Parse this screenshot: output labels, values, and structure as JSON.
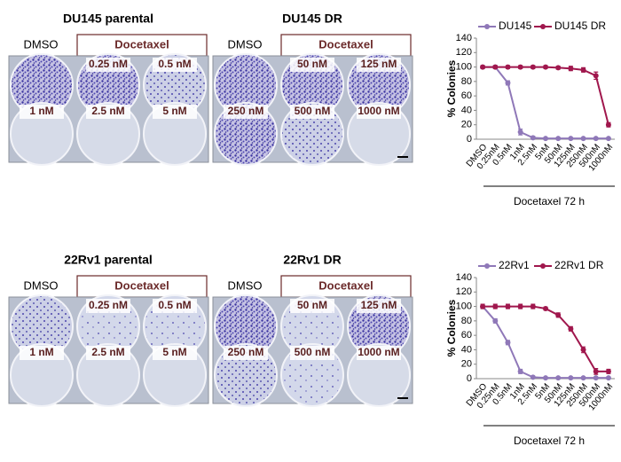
{
  "plates": [
    {
      "title": "DU145 parental",
      "control": "DMSO",
      "treatment": "Docetaxel",
      "doses": [
        "0.25 nM",
        "0.5 nM",
        "1 nM",
        "2.5 nM",
        "5 nM"
      ]
    },
    {
      "title": "DU145 DR",
      "control": "DMSO",
      "treatment": "Docetaxel",
      "doses": [
        "50 nM",
        "125 nM",
        "250 nM",
        "500 nM",
        "1000 nM"
      ]
    },
    {
      "title": "22Rv1 parental",
      "control": "DMSO",
      "treatment": "Docetaxel",
      "doses": [
        "0.25 nM",
        "0.5 nM",
        "1 nM",
        "2.5 nM",
        "5 nM"
      ]
    },
    {
      "title": "22Rv1 DR",
      "control": "DMSO",
      "treatment": "Docetaxel",
      "doses": [
        "50 nM",
        "125 nM",
        "250 nM",
        "500 nM",
        "1000 nM"
      ]
    }
  ],
  "chart_data": [
    {
      "type": "line",
      "y_label": "% Colonies",
      "x_label": "Docetaxel 72 h",
      "categories": [
        "DMSO",
        "0.25nM",
        "0.5nM",
        "1nM",
        "2.5nM",
        "5nM",
        "50nM",
        "125nM",
        "250nM",
        "500nM",
        "1000nM"
      ],
      "series": [
        {
          "name": "DU145",
          "color": "#8f78b8",
          "values": [
            100,
            100,
            78,
            10,
            2,
            1,
            1,
            1,
            1,
            1,
            1
          ],
          "errors": [
            2,
            2,
            3,
            4,
            2,
            1,
            1,
            1,
            1,
            1,
            1
          ]
        },
        {
          "name": "DU145 DR",
          "color": "#a0174d",
          "values": [
            100,
            100,
            100,
            100,
            100,
            100,
            99,
            98,
            96,
            88,
            20
          ],
          "errors": [
            2,
            2,
            2,
            2,
            2,
            2,
            2,
            3,
            3,
            5,
            3
          ]
        }
      ],
      "ylim": [
        0,
        140
      ],
      "yticks": [
        0,
        20,
        40,
        60,
        80,
        100,
        120,
        140
      ]
    },
    {
      "type": "line",
      "y_label": "% Colonies",
      "x_label": "Docetaxel 72 h",
      "categories": [
        "DMSO",
        "0.25nM",
        "0.5nM",
        "1nM",
        "2.5nM",
        "5nM",
        "50nM",
        "125nM",
        "250nM",
        "500nM",
        "1000nM"
      ],
      "series": [
        {
          "name": "22Rv1",
          "color": "#8f78b8",
          "values": [
            100,
            80,
            50,
            10,
            2,
            1,
            1,
            1,
            1,
            1,
            1
          ],
          "errors": [
            2,
            3,
            3,
            3,
            1,
            1,
            1,
            1,
            1,
            1,
            1
          ]
        },
        {
          "name": "22Rv1 DR",
          "color": "#a0174d",
          "values": [
            100,
            100,
            100,
            100,
            100,
            97,
            88,
            69,
            40,
            10,
            10
          ],
          "errors": [
            3,
            3,
            3,
            3,
            3,
            2,
            3,
            3,
            4,
            4,
            3
          ]
        }
      ],
      "ylim": [
        0,
        140
      ],
      "yticks": [
        0,
        20,
        40,
        60,
        80,
        100,
        120,
        140
      ]
    }
  ]
}
